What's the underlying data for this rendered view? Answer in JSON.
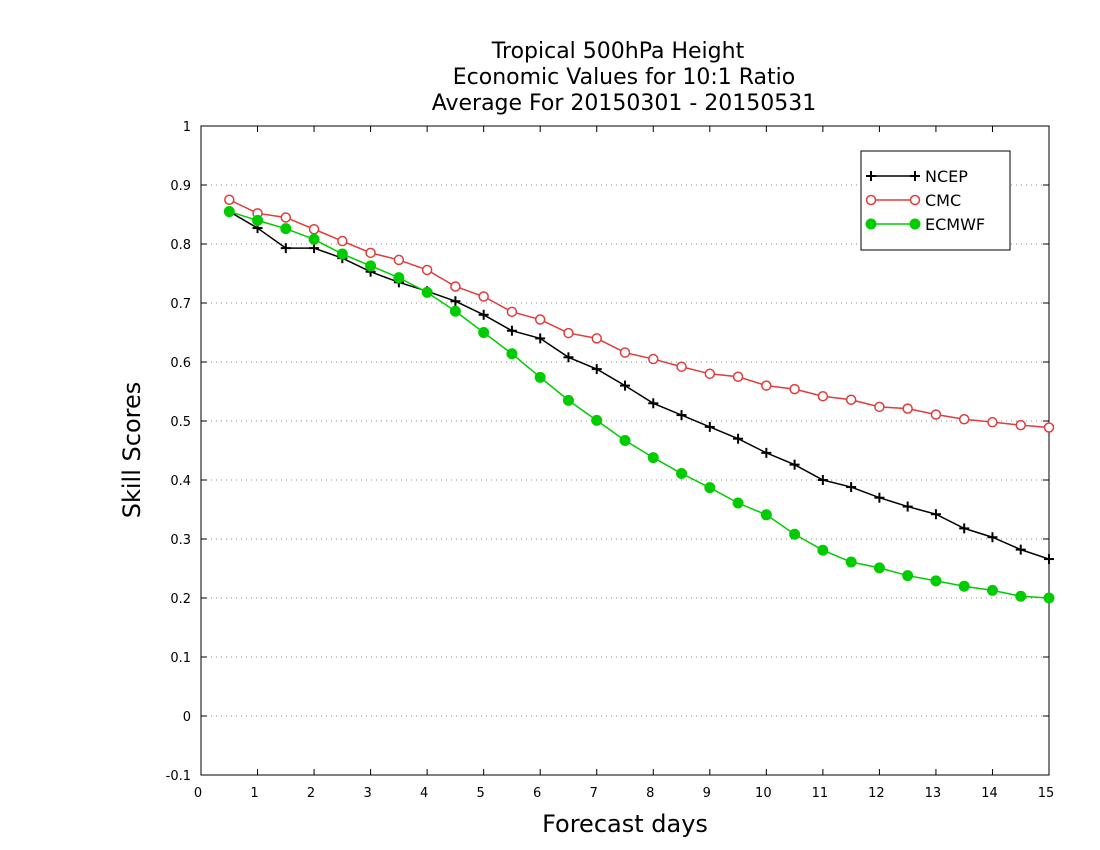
{
  "chart_data": {
    "type": "line",
    "title": [
      "Tropical 500hPa Height",
      "Economic Values for 10:1 Ratio",
      "Average For 20150301 - 20150531"
    ],
    "xlabel": "Forecast days",
    "ylabel": "Skill Scores",
    "xlim": [
      0,
      15
    ],
    "ylim": [
      -0.1,
      1
    ],
    "xticks": [
      0,
      1,
      2,
      3,
      4,
      5,
      6,
      7,
      8,
      9,
      10,
      11,
      12,
      13,
      14,
      15
    ],
    "yticks": [
      -0.1,
      0,
      0.1,
      0.2,
      0.3,
      0.4,
      0.5,
      0.6,
      0.7,
      0.8,
      0.9,
      1
    ],
    "ytick_labels": [
      "-0.1",
      "0",
      "0.1",
      "0.2",
      "0.3",
      "0.4",
      "0.5",
      "0.6",
      "0.7",
      "0.8",
      "0.9",
      "1"
    ],
    "grid": "horizontal dotted",
    "legend_position": "top-right",
    "x": [
      0.5,
      1,
      1.5,
      2,
      2.5,
      3,
      3.5,
      4,
      4.5,
      5,
      5.5,
      6,
      6.5,
      7,
      7.5,
      8,
      8.5,
      9,
      9.5,
      10,
      10.5,
      11,
      11.5,
      12,
      12.5,
      13,
      13.5,
      14,
      14.5,
      15
    ],
    "series": [
      {
        "name": "NCEP",
        "color": "#000000",
        "marker": "plus",
        "values": [
          0.855,
          0.827,
          0.793,
          0.793,
          0.776,
          0.753,
          0.735,
          0.72,
          0.703,
          0.68,
          0.653,
          0.64,
          0.608,
          0.588,
          0.56,
          0.53,
          0.51,
          0.49,
          0.47,
          0.446,
          0.426,
          0.4,
          0.388,
          0.37,
          0.355,
          0.342,
          0.318,
          0.303,
          0.282,
          0.266
        ]
      },
      {
        "name": "CMC",
        "color": "#e03c3c",
        "marker": "open-circle",
        "values": [
          0.875,
          0.852,
          0.845,
          0.825,
          0.805,
          0.785,
          0.773,
          0.756,
          0.728,
          0.711,
          0.685,
          0.672,
          0.649,
          0.64,
          0.616,
          0.605,
          0.592,
          0.58,
          0.575,
          0.56,
          0.554,
          0.542,
          0.536,
          0.524,
          0.521,
          0.511,
          0.503,
          0.498,
          0.493,
          0.489
        ]
      },
      {
        "name": "ECMWF",
        "color": "#00cc00",
        "marker": "filled-circle",
        "values": [
          0.855,
          0.84,
          0.826,
          0.808,
          0.783,
          0.763,
          0.743,
          0.718,
          0.686,
          0.65,
          0.614,
          0.574,
          0.535,
          0.501,
          0.467,
          0.438,
          0.411,
          0.387,
          0.361,
          0.341,
          0.308,
          0.281,
          0.261,
          0.251,
          0.238,
          0.229,
          0.22,
          0.213,
          0.203,
          0.2
        ]
      }
    ]
  }
}
